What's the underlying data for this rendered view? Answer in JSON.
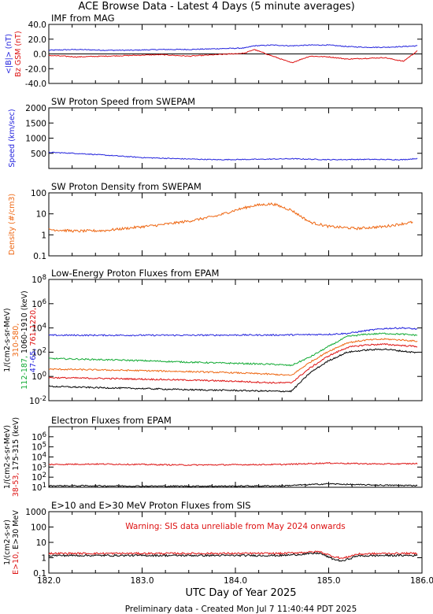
{
  "page_title": "ACE Browse Data - Latest 4 Days (5 minute averages)",
  "footer": "Preliminary data - Created Mon Jul  7 11:40:44 PDT 2025",
  "colors": {
    "blue": "#2222dd",
    "red": "#dd1111",
    "green": "#11aa33",
    "orange": "#ee6611",
    "black": "#000000"
  },
  "x_axis": {
    "label": "UTC Day of Year 2025",
    "range": [
      182.0,
      186.0
    ],
    "ticks": [
      "182.0",
      "183.0",
      "184.0",
      "185.0",
      "186.0"
    ]
  },
  "chart_data": [
    {
      "type": "line",
      "title": "IMF from MAG",
      "ylabel": "<|B|> (nT)",
      "ylabel2": "Bz GSM (nT)",
      "yscale": "linear",
      "ylim": [
        -40,
        40
      ],
      "yticks": [
        "40.0",
        "20.0",
        "0.0",
        "-20.0",
        "-40.0"
      ],
      "x": [
        182.0,
        182.3,
        182.6,
        182.9,
        183.2,
        183.5,
        183.8,
        184.1,
        184.2,
        184.4,
        184.6,
        184.8,
        185.0,
        185.2,
        185.4,
        185.6,
        185.8,
        185.95
      ],
      "series": [
        {
          "name": "<|B|>",
          "color": "blue",
          "values": [
            5,
            6,
            5,
            5,
            6,
            6,
            7,
            8,
            11,
            12,
            11,
            12,
            12,
            10,
            9,
            9,
            10,
            11
          ]
        },
        {
          "name": "Bz GSM",
          "color": "red",
          "values": [
            -2,
            -4,
            -3,
            -2,
            -1,
            -3,
            -1,
            1,
            6,
            -3,
            -12,
            -3,
            -4,
            -7,
            -6,
            -5,
            -10,
            4
          ]
        }
      ]
    },
    {
      "type": "line",
      "title": "SW Proton Speed from SWEPAM",
      "ylabel": "Speed (km/sec)",
      "yscale": "linear",
      "ylim": [
        0,
        2000
      ],
      "yticks": [
        "2000",
        "1500",
        "1000",
        "500"
      ],
      "x": [
        182.0,
        182.2,
        182.4,
        182.6,
        182.8,
        183.0,
        183.4,
        183.8,
        184.2,
        184.6,
        185.0,
        185.4,
        185.8,
        185.95
      ],
      "series": [
        {
          "name": "Speed",
          "color": "blue",
          "values": [
            530,
            510,
            480,
            440,
            400,
            360,
            320,
            290,
            300,
            320,
            290,
            300,
            290,
            330
          ]
        }
      ]
    },
    {
      "type": "line",
      "title": "SW Proton Density from SWEPAM",
      "ylabel": "Density (#/cm3)",
      "yscale": "log",
      "ylim": [
        0.1,
        100
      ],
      "yticks": [
        "100",
        "10",
        "1",
        "0.1"
      ],
      "x": [
        182.0,
        182.3,
        182.6,
        182.9,
        183.2,
        183.5,
        183.8,
        184.0,
        184.2,
        184.4,
        184.6,
        184.8,
        185.0,
        185.3,
        185.6,
        185.9
      ],
      "series": [
        {
          "name": "Density",
          "color": "orange",
          "values": [
            1.8,
            1.5,
            1.6,
            2.2,
            3.0,
            4.5,
            8,
            15,
            25,
            30,
            15,
            4,
            2.5,
            2.0,
            2.5,
            4
          ]
        }
      ]
    },
    {
      "type": "line",
      "title": "Low-Energy Proton Fluxes from EPAM",
      "ylabel": "1/(cm2-s-sr-MeV)",
      "ylabel_groups": [
        [
          {
            "text": "310-580,",
            "color": "orange"
          }
        ],
        [
          {
            "text": "112-187,",
            "color": "green"
          },
          {
            "text": "1060-1910 (keV)",
            "color": "black"
          }
        ],
        [
          {
            "text": "47-65,",
            "color": "blue"
          },
          {
            "text": "761-1220,",
            "color": "red"
          }
        ]
      ],
      "yscale": "log",
      "ylim": [
        0.01,
        100000000
      ],
      "yticks": [
        "10^8",
        "10^6",
        "10^4",
        "10^2",
        "10^0",
        "10^-2"
      ],
      "x": [
        182.0,
        182.5,
        183.0,
        183.5,
        184.0,
        184.4,
        184.6,
        184.8,
        185.0,
        185.2,
        185.4,
        185.6,
        185.8,
        185.95
      ],
      "series": [
        {
          "name": "47-65 keV",
          "color": "blue",
          "values": [
            2500,
            2500,
            2500,
            2500,
            2600,
            2600,
            2700,
            2800,
            3000,
            3500,
            6000,
            9000,
            10000,
            8000
          ]
        },
        {
          "name": "112-187 keV",
          "color": "green",
          "values": [
            30,
            25,
            20,
            15,
            12,
            10,
            8,
            40,
            300,
            2000,
            3000,
            3500,
            3000,
            2500
          ]
        },
        {
          "name": "310-580 keV",
          "color": "orange",
          "values": [
            4,
            3.5,
            3,
            2.5,
            2,
            1.5,
            1.2,
            15,
            120,
            600,
            1000,
            1200,
            1000,
            800
          ]
        },
        {
          "name": "761-1220 keV",
          "color": "red",
          "values": [
            0.8,
            0.7,
            0.6,
            0.5,
            0.4,
            0.3,
            0.3,
            5,
            50,
            250,
            400,
            450,
            350,
            300
          ]
        },
        {
          "name": "1060-1910 keV",
          "color": "black",
          "values": [
            0.15,
            0.12,
            0.1,
            0.08,
            0.07,
            0.06,
            0.06,
            2,
            20,
            100,
            150,
            180,
            120,
            90
          ]
        }
      ]
    },
    {
      "type": "line",
      "title": "Electron Fluxes from EPAM",
      "ylabel": "1/(cm2-s-sr-MeV)",
      "ylabel_groups": [
        [
          {
            "text": "38-53,",
            "color": "red"
          },
          {
            "text": "175-315 (keV)",
            "color": "black"
          }
        ]
      ],
      "yscale": "log",
      "ylim": [
        10,
        10000000
      ],
      "yticks": [
        "10^6",
        "10^5",
        "10^4",
        "10^3",
        "10^2",
        "10^1"
      ],
      "x": [
        182.0,
        182.5,
        183.0,
        183.5,
        184.0,
        184.5,
        185.0,
        185.3,
        185.6,
        185.95
      ],
      "series": [
        {
          "name": "38-53 keV",
          "color": "red",
          "values": [
            1800,
            2000,
            1800,
            1600,
            1700,
            1800,
            2500,
            2200,
            2000,
            2200
          ]
        },
        {
          "name": "175-315 keV",
          "color": "black",
          "values": [
            14,
            14,
            13,
            13,
            13,
            14,
            22,
            18,
            16,
            15
          ]
        }
      ]
    },
    {
      "type": "line",
      "title": "E>10 and E>30 MeV Proton Fluxes from SIS",
      "annotation": "Warning: SIS data unreliable from May 2024 onwards",
      "ylabel": "1/(cm2-s-sr)",
      "ylabel_groups": [
        [
          {
            "text": "E>10,",
            "color": "red"
          },
          {
            "text": "E>30 MeV",
            "color": "black"
          }
        ]
      ],
      "yscale": "log",
      "ylim": [
        0.1,
        1000
      ],
      "yticks": [
        "1000",
        "100",
        "10",
        "1",
        "0.1"
      ],
      "x": [
        182.0,
        182.5,
        183.0,
        183.5,
        184.0,
        184.5,
        184.9,
        185.05,
        185.15,
        185.3,
        185.6,
        185.95
      ],
      "series": [
        {
          "name": "E>10 MeV",
          "color": "red",
          "values": [
            1.9,
            1.9,
            1.9,
            1.9,
            1.9,
            1.9,
            2.5,
            1.2,
            0.9,
            1.7,
            1.9,
            1.9
          ]
        },
        {
          "name": "E>30 MeV",
          "color": "black",
          "values": [
            1.4,
            1.4,
            1.4,
            1.4,
            1.4,
            1.4,
            2.0,
            0.8,
            0.6,
            1.3,
            1.4,
            1.4
          ]
        }
      ]
    }
  ]
}
